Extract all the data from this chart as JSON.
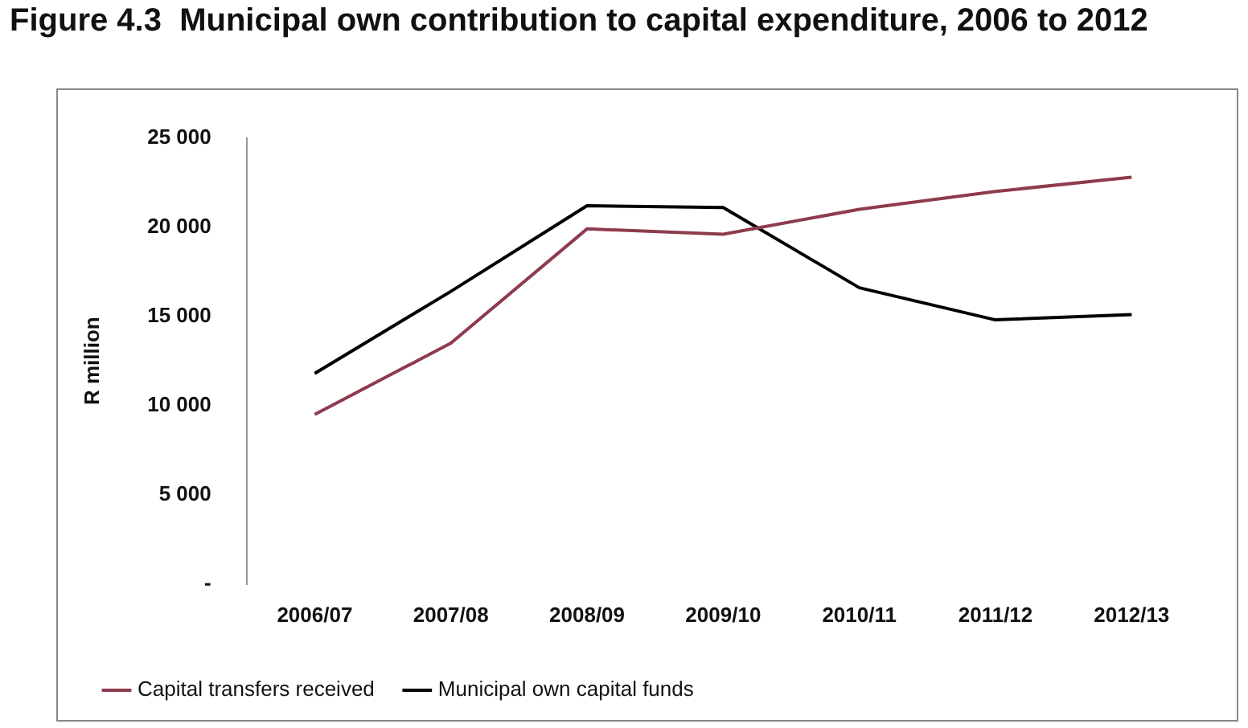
{
  "chart_data": {
    "type": "line",
    "title": "Figure 4.3  Municipal own contribution to capital expenditure, 2006 to 2012",
    "ylabel": "R million",
    "categories": [
      "2006/07",
      "2007/08",
      "2008/09",
      "2009/10",
      "2010/11",
      "2011/12",
      "2012/13"
    ],
    "series": [
      {
        "name": "Capital transfers received",
        "color": "#8e3b4e",
        "values": [
          9500,
          13500,
          19900,
          19600,
          21000,
          22000,
          22800
        ]
      },
      {
        "name": "Municipal own capital funds",
        "color": "#000000",
        "values": [
          11800,
          16400,
          21200,
          21100,
          16600,
          14800,
          15100
        ]
      }
    ],
    "ylim": [
      0,
      25000
    ],
    "yticks": [
      {
        "value": 0,
        "label": "-"
      },
      {
        "value": 5000,
        "label": "5 000"
      },
      {
        "value": 10000,
        "label": "10 000"
      },
      {
        "value": 15000,
        "label": "15 000"
      },
      {
        "value": 20000,
        "label": "20 000"
      },
      {
        "value": 25000,
        "label": "25 000"
      }
    ],
    "grid": false,
    "legend": "bottom",
    "marker": "none",
    "line_style": "solid"
  }
}
